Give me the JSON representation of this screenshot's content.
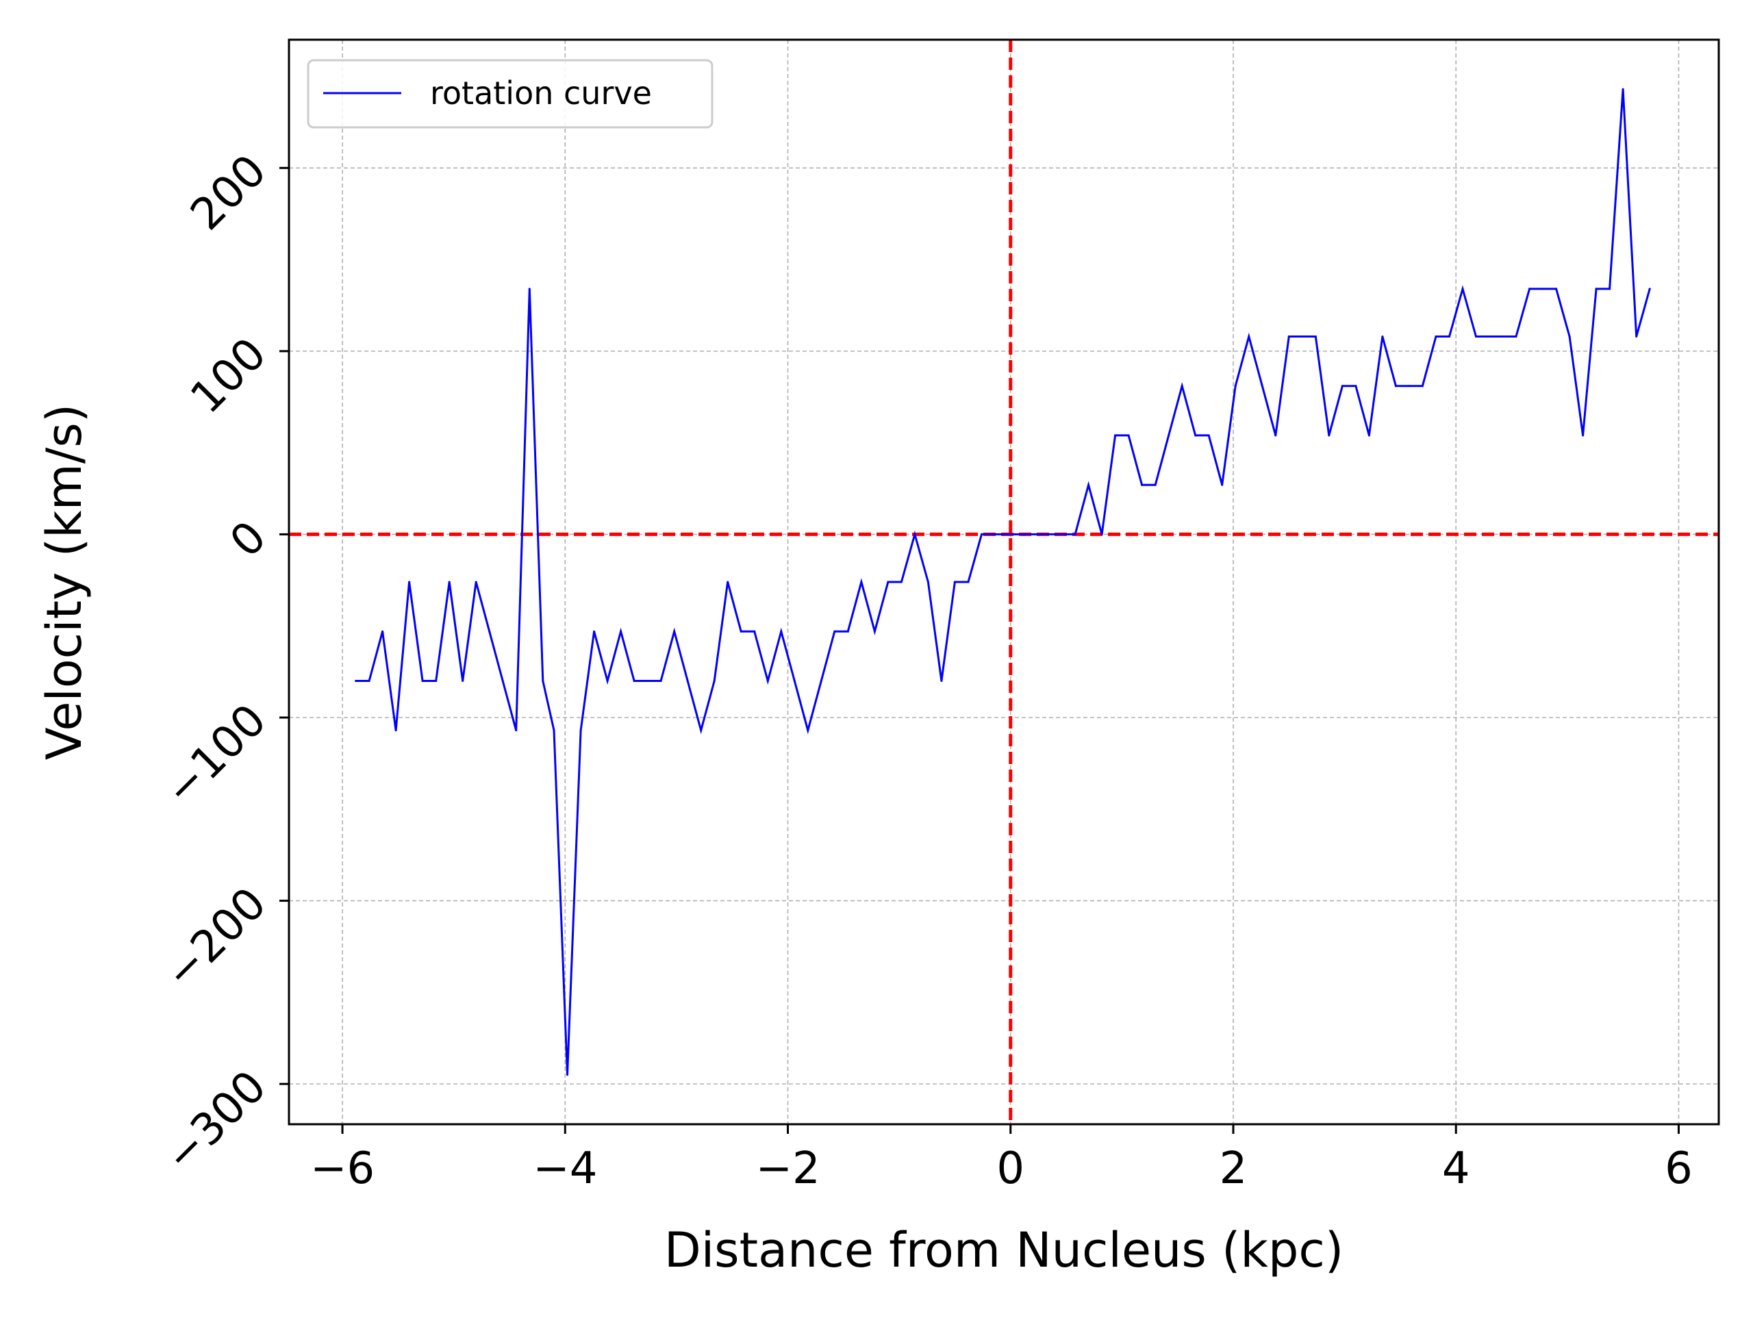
{
  "chart_data": {
    "type": "line",
    "xlabel": "Distance from Nucleus (kpc)",
    "ylabel": "Velocity (km/s)",
    "xlim": [
      -6.48,
      6.36
    ],
    "ylim": [
      -322,
      270
    ],
    "xticks": [
      -6,
      -4,
      -2,
      0,
      2,
      4,
      6
    ],
    "xtick_labels": [
      "−6",
      "−4",
      "−2",
      "0",
      "2",
      "4",
      "6"
    ],
    "yticks": [
      -300,
      -200,
      -100,
      0,
      100,
      200
    ],
    "ytick_labels": [
      "−300",
      "−200",
      "−100",
      "0",
      "100",
      "200"
    ],
    "grid": true,
    "legend_position": "top-left",
    "reference_lines": [
      {
        "orientation": "horizontal",
        "value": 0,
        "color": "#ff0000",
        "style": "dashed"
      },
      {
        "orientation": "vertical",
        "value": 0,
        "color": "#ff0000",
        "style": "dashed"
      }
    ],
    "series": [
      {
        "name": "rotation curve",
        "color": "#0000ff",
        "x": [
          -5.88,
          -5.76,
          -5.64,
          -5.52,
          -5.4,
          -5.28,
          -5.16,
          -5.04,
          -4.92,
          -4.8,
          -4.68,
          -4.56,
          -4.44,
          -4.32,
          -4.2,
          -4.1,
          -3.98,
          -3.86,
          -3.74,
          -3.62,
          -3.5,
          -3.38,
          -3.26,
          -3.14,
          -3.02,
          -2.9,
          -2.78,
          -2.66,
          -2.54,
          -2.42,
          -2.3,
          -2.18,
          -2.06,
          -1.94,
          -1.82,
          -1.7,
          -1.58,
          -1.46,
          -1.34,
          -1.22,
          -1.1,
          -0.98,
          -0.86,
          -0.74,
          -0.62,
          -0.5,
          -0.38,
          -0.26,
          -0.14,
          -0.02,
          0.1,
          0.22,
          0.34,
          0.46,
          0.58,
          0.7,
          0.82,
          0.94,
          1.06,
          1.18,
          1.3,
          1.42,
          1.54,
          1.66,
          1.78,
          1.9,
          2.02,
          2.14,
          2.26,
          2.38,
          2.5,
          2.62,
          2.74,
          2.86,
          2.98,
          3.1,
          3.22,
          3.34,
          3.46,
          3.58,
          3.7,
          3.82,
          3.94,
          4.06,
          4.18,
          4.3,
          4.42,
          4.54,
          4.66,
          4.78,
          4.9,
          5.02,
          5.14,
          5.26,
          5.38,
          5.5,
          5.62,
          5.74
        ],
        "y": [
          -80,
          -80,
          -53,
          -107,
          -26,
          -80,
          -80,
          -26,
          -80,
          -26,
          -53,
          -80,
          -107,
          134,
          -80,
          -107,
          -295,
          -107,
          -53,
          -80,
          -53,
          -80,
          -80,
          -80,
          -53,
          -80,
          -107,
          -80,
          -26,
          -53,
          -53,
          -80,
          -53,
          -80,
          -107,
          -80,
          -53,
          -53,
          -26,
          -53,
          -26,
          -26,
          0,
          -26,
          -80,
          -26,
          -26,
          0,
          0,
          0,
          0,
          0,
          0,
          0,
          0,
          27,
          0,
          54,
          54,
          27,
          27,
          54,
          81,
          54,
          54,
          27,
          81,
          108,
          81,
          54,
          108,
          108,
          108,
          54,
          81,
          81,
          54,
          108,
          81,
          81,
          81,
          108,
          108,
          134,
          108,
          108,
          108,
          108,
          134,
          134,
          134,
          108,
          54,
          134,
          134,
          243,
          108,
          134
        ]
      }
    ]
  }
}
